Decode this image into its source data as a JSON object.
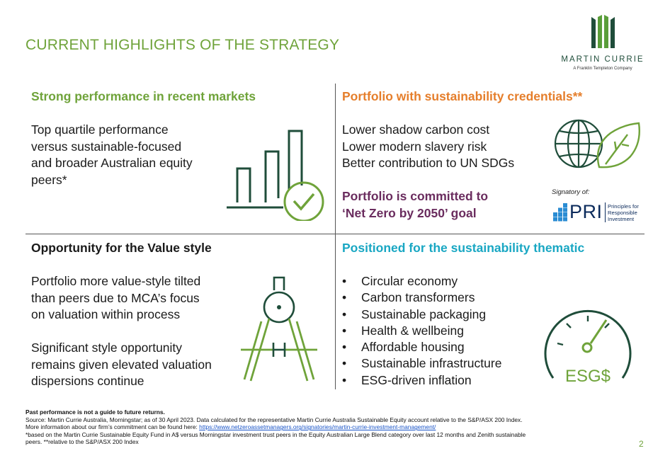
{
  "title": "CURRENT HIGHLIGHTS OF THE STRATEGY",
  "logo": {
    "name": "MARTIN CURRIE",
    "subtitle": "A Franklin Templeton Company"
  },
  "colors": {
    "green": "#6fa33a",
    "orange": "#e57e2b",
    "purple": "#6a2c5e",
    "teal": "#19a7c3",
    "dark_green": "#1f4d3a"
  },
  "q1": {
    "heading": "Strong performance in recent markets",
    "lines": [
      "Top quartile performance",
      "versus sustainable-focused",
      "and broader Australian equity",
      "peers*"
    ],
    "icon": "bar-chart-check-icon"
  },
  "q2": {
    "heading": "Portfolio with sustainability credentials**",
    "lines": [
      "Lower shadow carbon cost",
      "Lower modern slavery risk",
      "Better contribution to UN SDGs"
    ],
    "commit_lines": [
      "Portfolio is committed to",
      "‘Net Zero by 2050’ goal"
    ],
    "signatory_label": "Signatory of:",
    "pri": {
      "mark": "PRI",
      "text_lines": [
        "Principles for",
        "Responsible",
        "Investment"
      ]
    },
    "icon": "globe-leaf-icon"
  },
  "q3": {
    "heading": "Opportunity for the Value style",
    "para1": [
      "Portfolio more value-style tilted",
      "than peers due to MCA’s focus",
      "on valuation within process"
    ],
    "para2": [
      "Significant style opportunity",
      "remains given elevated valuation",
      "dispersions continue"
    ],
    "icon": "compass-icon"
  },
  "q4": {
    "heading": "Positioned for the sustainability thematic",
    "bullets": [
      "Circular economy",
      "Carbon transformers",
      "Sustainable packaging",
      "Health & wellbeing",
      "Affordable housing",
      "Sustainable infrastructure",
      "ESG-driven inflation"
    ],
    "gauge_label": "ESG$",
    "icon": "esg-gauge-icon"
  },
  "footer": {
    "bold": "Past performance is not a guide to future returns.",
    "line1": "Source: Martin Currie Australia, Morningstar; as of 30 April 2023. Data calculated for the representative Martin Currie Australia Sustainable Equity account relative to the S&P/ASX 200 Index.",
    "line2_prefix": "More information about our firm’s commitment can be found here: ",
    "line2_link": "https://www.netzeroassetmanagers.org/signatories/martin-currie-investment-management/",
    "line3": "*based on the Martin Currie Sustainable Equity Fund in A$ versus Morningstar investment trust peers in the Equity Australian Large Blend category over last 12 months and Zenith sustainable",
    "line4": "peers. **relative to the S&P/ASX 200 Index"
  },
  "page_number": "2"
}
